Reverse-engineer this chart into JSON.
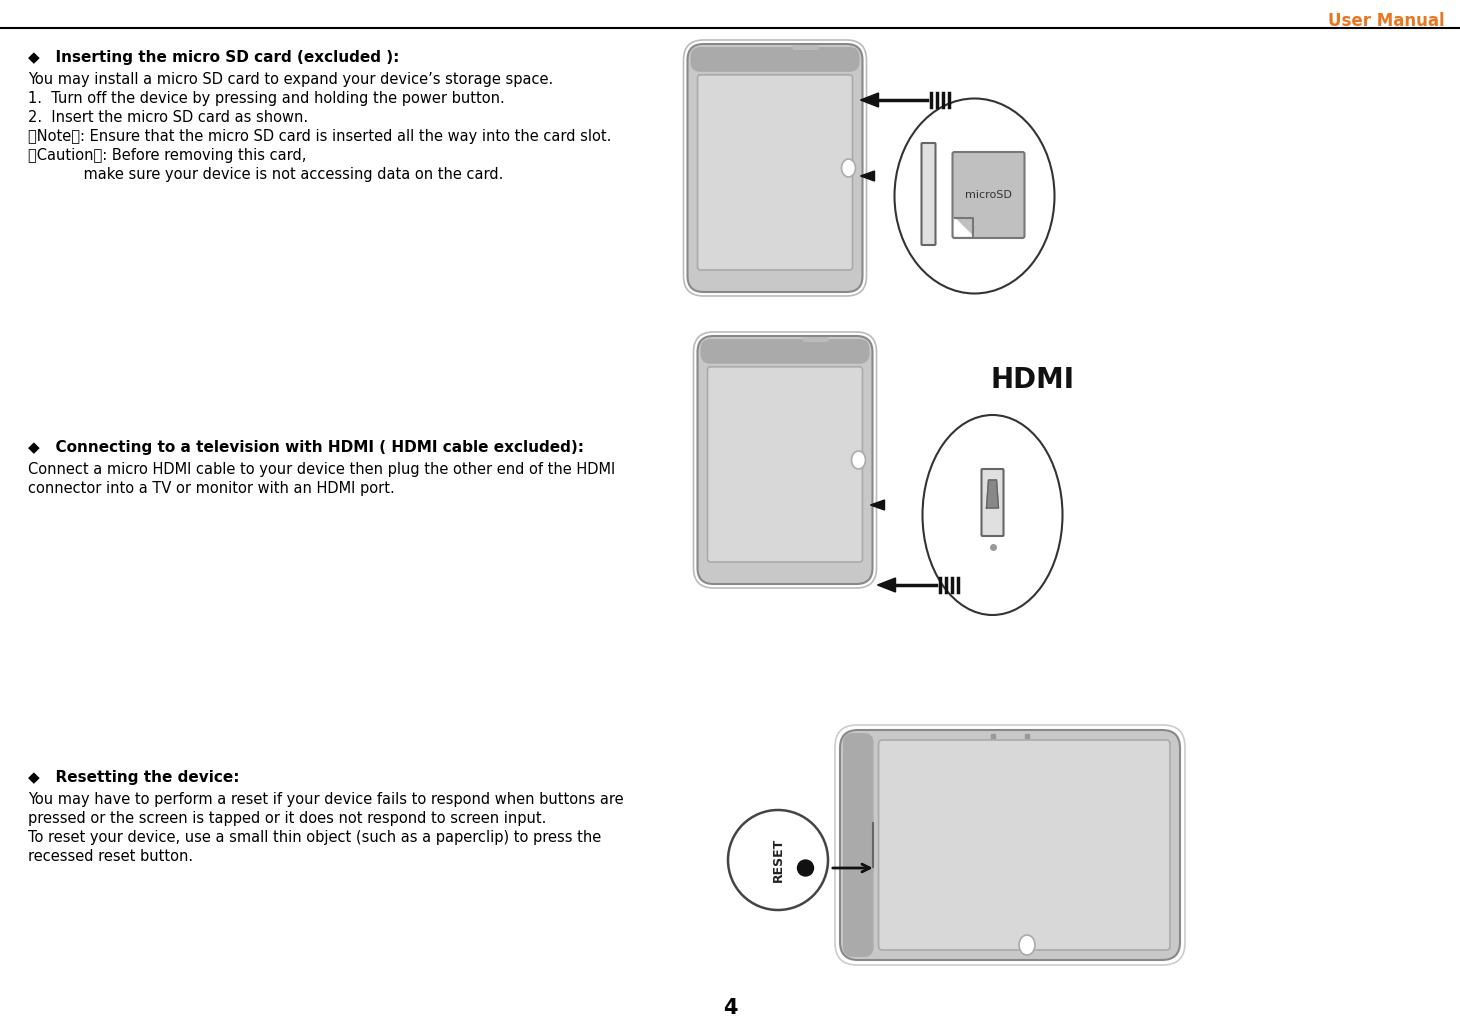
{
  "title": "User Manual",
  "title_color": "#E87722",
  "background_color": "#ffffff",
  "page_number": "4",
  "header_line_color": "#000000",
  "section1_heading": "◆   Inserting the micro SD card (excluded ):",
  "section2_heading": "◆   Connecting to a television with HDMI ( HDMI cable excluded):",
  "section3_heading": "◆   Resetting the device:",
  "body1_line1": "You may install a micro SD card to expand your device’s storage space.",
  "body1_line2": "1.  Turn off the device by pressing and holding the power button.",
  "body1_line3": "2.  Insert the micro SD card as shown.",
  "body1_line4": "【Note】: Ensure that the micro SD card is inserted all the way into the card slot.",
  "body1_line5": "【Caution】: Before removing this card,",
  "body1_line6": "            make sure your device is not accessing data on the card.",
  "body2_line1": "Connect a micro HDMI cable to your device then plug the other end of the HDMI",
  "body2_line2": "connector into a TV or monitor with an HDMI port.",
  "body3_line1": "You may have to perform a reset if your device fails to respond when buttons are",
  "body3_line2": "pressed or the screen is tapped or it does not respond to screen input.",
  "body3_line3": "To reset your device, use a small thin object (such as a paperclip) to press the",
  "body3_line4": "recessed reset button.",
  "tablet_body": "#c8c8c8",
  "tablet_screen": "#d8d8d8",
  "tablet_bezel_top": "#aaaaaa",
  "tablet_outline": "#888888",
  "tablet_outline_outer": "#bbbbbb",
  "sd_card_color": "#c0c0c0",
  "sd_slot_color": "#dddddd",
  "arrow_color": "#111111",
  "ellipse_color": "#333333",
  "hdmi_color": "#d0d0d0"
}
